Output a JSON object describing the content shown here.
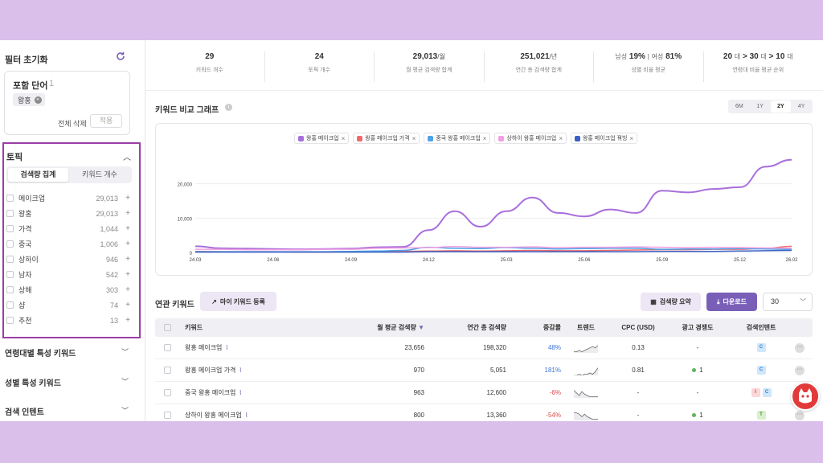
{
  "sidebar": {
    "filter_reset_label": "필터 초기화",
    "include": {
      "title": "포함 단어",
      "count": "1",
      "chip": "왕홍",
      "delete_all": "전체 삭제",
      "apply": "적용"
    },
    "topic": {
      "title": "토픽",
      "tabs": [
        "검색량 집계",
        "키워드 개수"
      ],
      "items": [
        {
          "label": "메이크업",
          "count": "29,013"
        },
        {
          "label": "왕홍",
          "count": "29,013"
        },
        {
          "label": "가격",
          "count": "1,044"
        },
        {
          "label": "중국",
          "count": "1,006"
        },
        {
          "label": "상하이",
          "count": "946"
        },
        {
          "label": "남자",
          "count": "542"
        },
        {
          "label": "상해",
          "count": "303"
        },
        {
          "label": "샵",
          "count": "74"
        },
        {
          "label": "추천",
          "count": "13"
        }
      ]
    },
    "sections": [
      "연령대별 특성 키워드",
      "성별 특성 키워드",
      "검색 인텐트"
    ]
  },
  "stats": {
    "keywords": {
      "value": "29",
      "label": "키워드 개수"
    },
    "topics": {
      "value": "24",
      "label": "토픽 개수"
    },
    "monthly": {
      "value": "29,013",
      "unit": "/월",
      "label": "월 평균 검색량 합계"
    },
    "yearly": {
      "value": "251,021",
      "unit": "/년",
      "label": "연간 총 검색량 합계"
    },
    "gender": {
      "male_label": "남성",
      "male": "19%",
      "female_label": "여성",
      "female": "81%",
      "label": "성별 비율 평균"
    },
    "age": {
      "a1": "20",
      "a2": "30",
      "a3": "10",
      "unit": "대",
      "label": "연령대 비율 평균 순위"
    }
  },
  "graph": {
    "title": "키워드 비교 그래프",
    "periods": [
      "6M",
      "1Y",
      "2Y",
      "4Y"
    ],
    "active_period": "2Y"
  },
  "chart_data": {
    "type": "line",
    "x": [
      "24.03",
      "24.04",
      "24.05",
      "24.06",
      "24.07",
      "24.08",
      "24.09",
      "24.10",
      "24.11",
      "24.12",
      "25.01",
      "25.02",
      "25.03",
      "25.04",
      "25.05",
      "25.06",
      "25.07",
      "25.08",
      "25.09",
      "25.10",
      "25.11",
      "25.12",
      "26.01",
      "26.02"
    ],
    "xticks": [
      "24.03",
      "24.06",
      "24.09",
      "24.12",
      "25.03",
      "25.06",
      "25.09",
      "25.12",
      "26.02"
    ],
    "yticks": [
      "0",
      "10,000",
      "20,000"
    ],
    "ylim": [
      0,
      30000
    ],
    "series": [
      {
        "name": "왕홍 메이크업",
        "color": "#a86fdc",
        "values": [
          1800,
          1200,
          1100,
          1000,
          900,
          1000,
          1100,
          1500,
          1600,
          6500,
          12000,
          7500,
          12000,
          16000,
          11500,
          10500,
          12500,
          11500,
          18000,
          17500,
          18500,
          19000,
          25000,
          27000
        ]
      },
      {
        "name": "왕홍 메이크업 가격",
        "color": "#ef6b6b",
        "values": [
          300,
          200,
          200,
          200,
          100,
          100,
          200,
          200,
          300,
          400,
          500,
          400,
          500,
          600,
          500,
          500,
          600,
          700,
          800,
          800,
          900,
          900,
          1200,
          1800
        ]
      },
      {
        "name": "중국 왕홍 메이크업",
        "color": "#4da3e8",
        "values": [
          200,
          200,
          200,
          200,
          200,
          200,
          300,
          400,
          600,
          1500,
          1200,
          1100,
          1400,
          1200,
          1000,
          1100,
          1200,
          1200,
          900,
          1000,
          1000,
          1100,
          1000,
          900
        ]
      },
      {
        "name": "상하이 왕홍 메이크업",
        "color": "#f29ee0",
        "values": [
          900,
          900,
          800,
          800,
          800,
          900,
          900,
          1200,
          1300,
          1400,
          1700,
          1500,
          1500,
          1600,
          1400,
          1500,
          1500,
          1600,
          1500,
          1400,
          1500,
          1400,
          1300,
          1200
        ]
      },
      {
        "name": "왕홍 메이크업 꿔빙",
        "color": "#3b5fc4",
        "values": [
          100,
          100,
          100,
          100,
          100,
          100,
          100,
          100,
          100,
          200,
          200,
          200,
          200,
          200,
          200,
          200,
          200,
          200,
          300,
          300,
          300,
          400,
          500,
          600
        ]
      }
    ]
  },
  "related": {
    "title": "연관 키워드",
    "my_keyword_btn": "마이 키워드 등록",
    "summary_btn": "검색량 요약",
    "download_btn": "다운로드",
    "page_size": "30",
    "columns": [
      "키워드",
      "월 평균 검색량",
      "연간 총 검색량",
      "증감률",
      "트렌드",
      "CPC (USD)",
      "광고 경쟁도",
      "검색인텐트"
    ],
    "rows": [
      {
        "keyword": "왕홍 메이크업",
        "monthly": "23,656",
        "yearly": "198,320",
        "change": "48%",
        "dir": "up",
        "cpc": "0.13",
        "comp": "-",
        "comp_dot": false,
        "intents": [
          "C"
        ]
      },
      {
        "keyword": "왕홍 메이크업 가격",
        "monthly": "970",
        "yearly": "5,051",
        "change": "181%",
        "dir": "up",
        "cpc": "0.81",
        "comp": "1",
        "comp_dot": true,
        "intents": [
          "C"
        ]
      },
      {
        "keyword": "중국 왕홍 메이크업",
        "monthly": "963",
        "yearly": "12,600",
        "change": "-6%",
        "dir": "down",
        "cpc": "-",
        "comp": "-",
        "comp_dot": false,
        "intents": [
          "I",
          "C"
        ]
      },
      {
        "keyword": "상하이 왕홍 메이크업",
        "monthly": "800",
        "yearly": "13,360",
        "change": "-54%",
        "dir": "down",
        "cpc": "-",
        "comp": "1",
        "comp_dot": true,
        "intents": [
          "T"
        ]
      }
    ]
  }
}
